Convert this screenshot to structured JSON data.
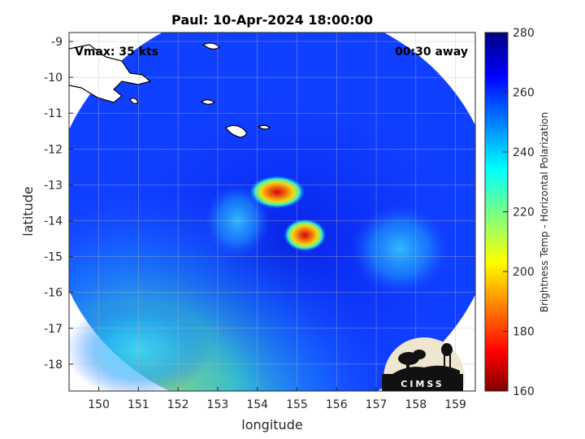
{
  "chart_data": {
    "type": "heatmap",
    "title": "Paul: 10-Apr-2024 18:00:00",
    "xlabel": "longitude",
    "ylabel": "latitude",
    "xlim": [
      149.25,
      159.5
    ],
    "ylim": [
      -18.75,
      -8.75
    ],
    "x_ticks": [
      "150",
      "151",
      "152",
      "153",
      "154",
      "155",
      "156",
      "157",
      "158",
      "159"
    ],
    "y_ticks": [
      "-9",
      "-10",
      "-11",
      "-12",
      "-13",
      "-14",
      "-15",
      "-16",
      "-17",
      "-18"
    ],
    "grid": true,
    "colorbar": {
      "label": "Brightness Temp - Horizontal Polarization",
      "range": [
        160,
        280
      ],
      "ticks": [
        "280",
        "260",
        "240",
        "220",
        "200",
        "180",
        "160"
      ],
      "colormap": "jet"
    },
    "annotations": {
      "vmax": "Vmax: 35 kts",
      "time_away": "00:30 away"
    },
    "swath_center": [
      154.4,
      -13.7
    ],
    "swath_radius_deg": 5.6,
    "background_temp": 264,
    "cold_features": [
      {
        "lon": 154.5,
        "lat": -13.2,
        "min_temp": 188
      },
      {
        "lon": 155.2,
        "lat": -14.4,
        "min_temp": 182
      },
      {
        "lon": 153.5,
        "lat": -14.0,
        "min_temp": 250
      },
      {
        "lon": 157.6,
        "lat": -14.8,
        "min_temp": 242
      },
      {
        "lon": 151.0,
        "lat": -17.6,
        "min_temp": 232
      }
    ],
    "logo": "CIMSS"
  }
}
